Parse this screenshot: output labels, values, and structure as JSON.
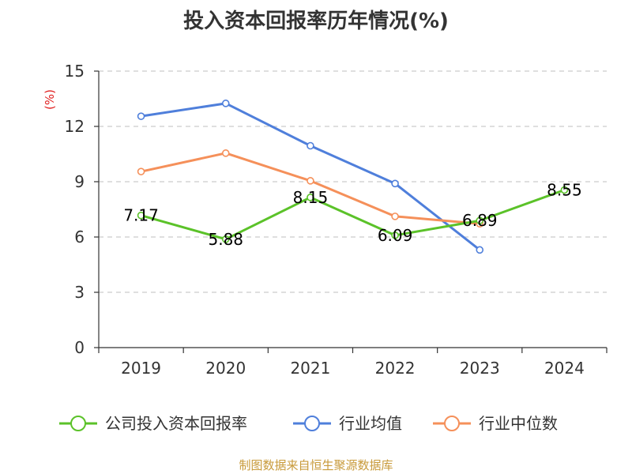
{
  "chart_data": {
    "type": "line",
    "title": "投入资本回报率历年情况(%)",
    "ylabel": "(%)",
    "xlabel": "",
    "categories": [
      "2019",
      "2020",
      "2021",
      "2022",
      "2023",
      "2024"
    ],
    "ylim": [
      0,
      15
    ],
    "yticks": [
      0,
      3,
      6,
      9,
      12,
      15
    ],
    "grid": true,
    "legend_position": "bottom",
    "series": [
      {
        "name": "公司投入资本回报率",
        "color": "#5bc229",
        "values": [
          7.17,
          5.88,
          8.15,
          6.09,
          6.89,
          8.55
        ],
        "labels": [
          "7.17",
          "5.88",
          "8.15",
          "6.09",
          "6.89",
          "8.55"
        ]
      },
      {
        "name": "行业均值",
        "color": "#4f7fdb",
        "values": [
          12.55,
          13.25,
          10.95,
          8.9,
          5.3,
          null
        ]
      },
      {
        "name": "行业中位数",
        "color": "#f5905a",
        "values": [
          9.55,
          10.55,
          9.05,
          7.12,
          6.72,
          null
        ]
      }
    ]
  },
  "source": "制图数据来自恒生聚源数据库"
}
